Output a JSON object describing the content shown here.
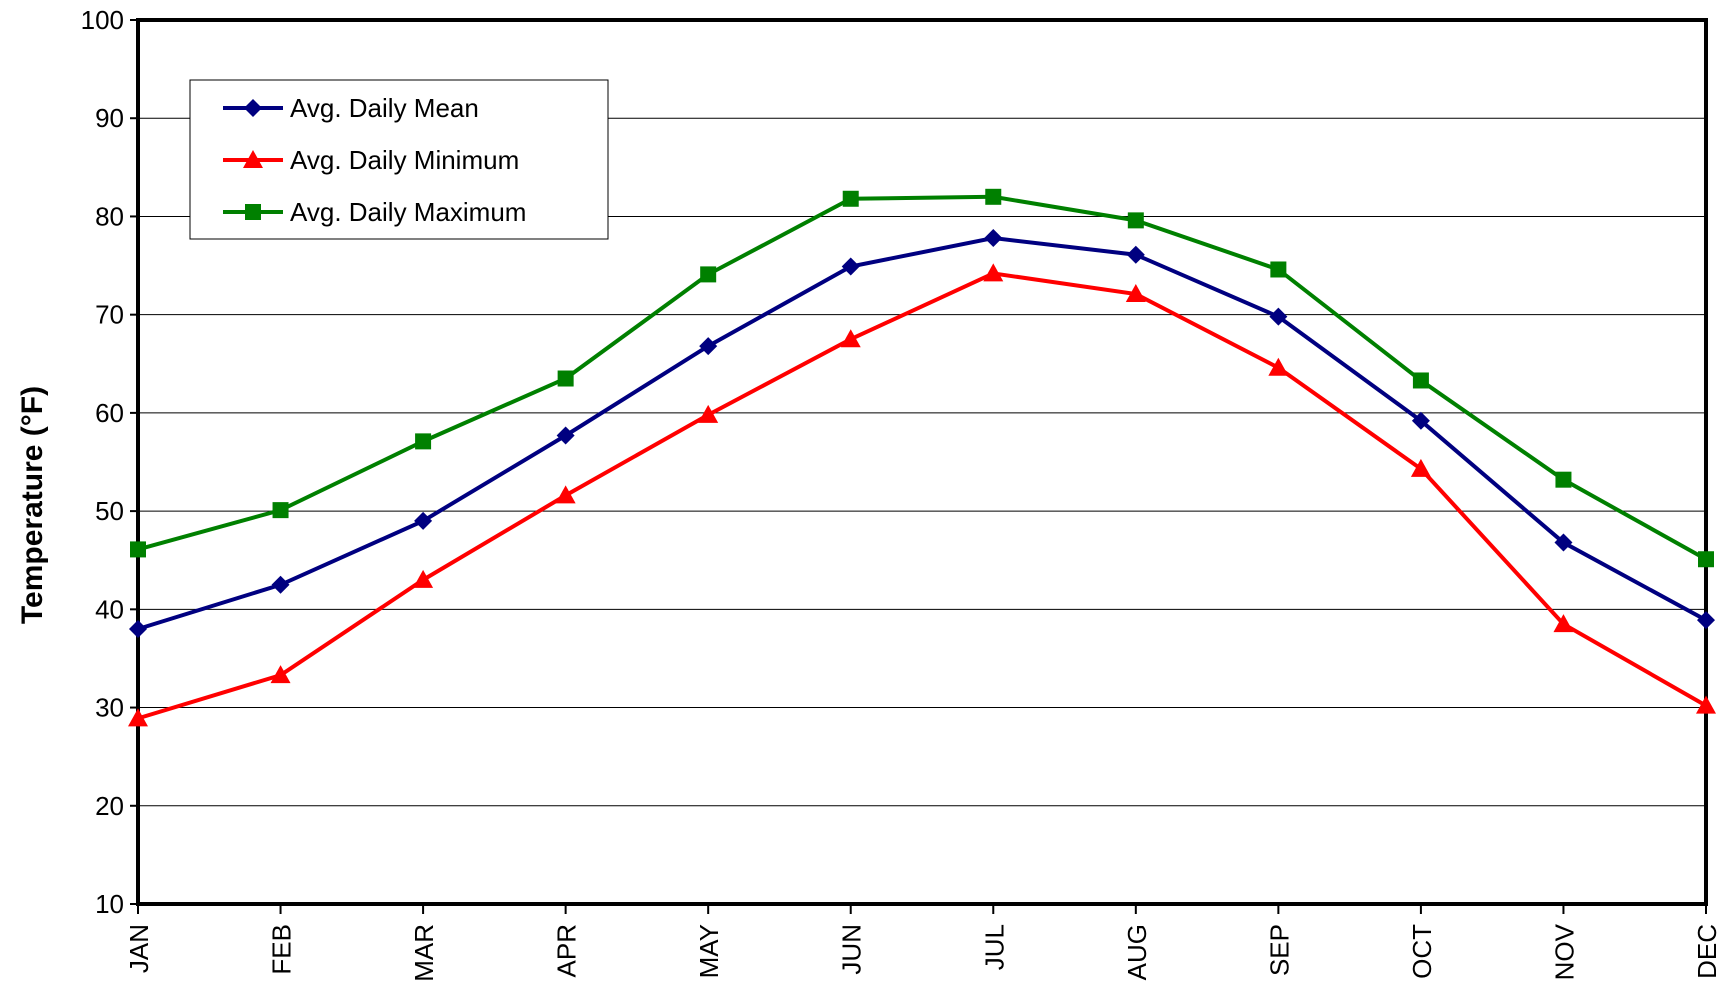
{
  "chart_data": {
    "type": "line",
    "title": "",
    "xlabel": "",
    "ylabel": "Temperature (°F)",
    "categories": [
      "JAN",
      "FEB",
      "MAR",
      "APR",
      "MAY",
      "JUN",
      "JUL",
      "AUG",
      "SEP",
      "OCT",
      "NOV",
      "DEC"
    ],
    "ylim": [
      10,
      100
    ],
    "yticks": [
      "10",
      "20",
      "30",
      "40",
      "50",
      "60",
      "70",
      "80",
      "90",
      "100"
    ],
    "grid": true,
    "legend_position": "top-left",
    "series": [
      {
        "name": "Avg. Daily Mean",
        "color": "#000080",
        "marker": "diamond",
        "values": [
          38.0,
          42.5,
          49.0,
          57.7,
          66.8,
          74.9,
          77.8,
          76.1,
          69.8,
          59.2,
          46.8,
          38.9
        ]
      },
      {
        "name": "Avg. Daily Minimum",
        "color": "#ff0000",
        "marker": "triangle",
        "values": [
          28.9,
          33.3,
          43.0,
          51.6,
          59.8,
          67.5,
          74.2,
          72.1,
          64.6,
          54.3,
          38.5,
          30.2
        ]
      },
      {
        "name": "Avg. Daily Maximum",
        "color": "#008000",
        "marker": "square",
        "values": [
          46.1,
          50.1,
          57.1,
          63.5,
          74.1,
          81.8,
          82.0,
          79.6,
          74.6,
          63.3,
          53.2,
          45.1
        ]
      }
    ]
  }
}
